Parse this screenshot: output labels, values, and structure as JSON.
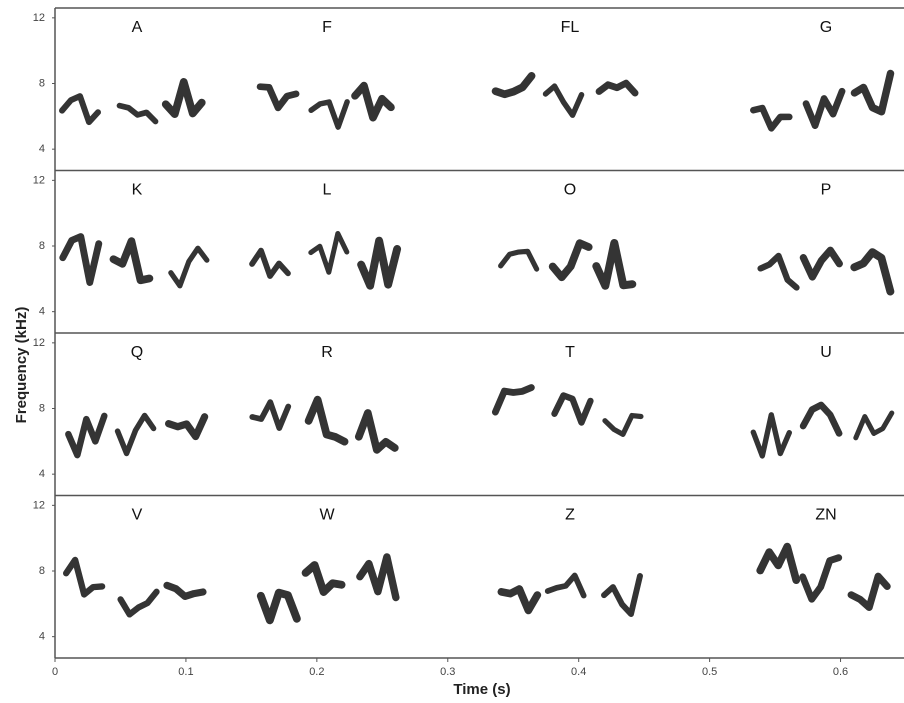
{
  "chart_data": {
    "type": "spectrogram",
    "xlabel": "Time (s)",
    "ylabel": "Frequency (kHz)",
    "xlim": [
      0,
      0.65
    ],
    "xticks": [
      0,
      0.1,
      0.2,
      0.3,
      0.4,
      0.5,
      0.6
    ],
    "panels": [
      {
        "ylim": [
          2.7,
          12.6
        ],
        "yticks": [
          4,
          8,
          12
        ],
        "labels": [
          "A",
          "F",
          "FL",
          "G"
        ]
      },
      {
        "ylim": [
          2.7,
          12.6
        ],
        "yticks": [
          4,
          8,
          12
        ],
        "labels": [
          "K",
          "L",
          "O",
          "P"
        ]
      },
      {
        "ylim": [
          2.7,
          12.6
        ],
        "yticks": [
          4,
          8,
          12
        ],
        "labels": [
          "Q",
          "R",
          "T",
          "U"
        ]
      },
      {
        "ylim": [
          2.7,
          12.6
        ],
        "yticks": [
          4,
          8,
          12
        ],
        "labels": [
          "V",
          "W",
          "Z",
          "ZN"
        ]
      }
    ]
  }
}
